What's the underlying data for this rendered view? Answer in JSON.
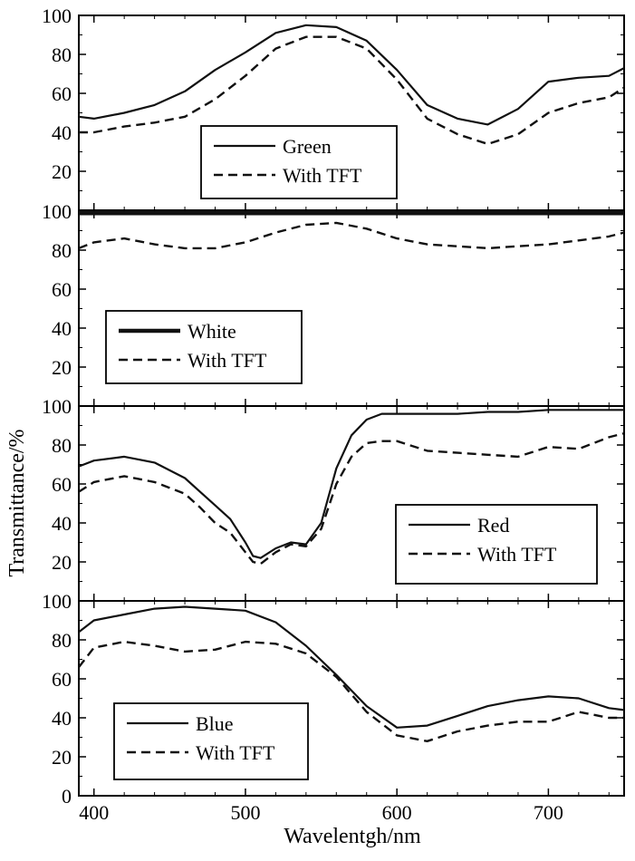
{
  "chart_data": {
    "type": "line",
    "xlabel": "Wavelentgh/nm",
    "ylabel": "Transmittance/%",
    "xlim": [
      390,
      750
    ],
    "ylim": [
      0,
      100
    ],
    "xticks": [
      "400",
      "500",
      "600",
      "700"
    ],
    "yticks": [
      "0",
      "20",
      "40",
      "60",
      "80",
      "100"
    ],
    "grid": false,
    "panels": [
      {
        "id": "green",
        "legend_position": "bottom-center",
        "series": [
          {
            "name": "Green",
            "style": "solid",
            "x": [
              390,
              400,
              420,
              440,
              460,
              480,
              500,
              520,
              540,
              560,
              580,
              600,
              620,
              640,
              660,
              680,
              700,
              720,
              740,
              750
            ],
            "y": [
              48,
              47,
              50,
              54,
              61,
              72,
              81,
              91,
              95,
              94,
              87,
              72,
              54,
              47,
              44,
              52,
              66,
              68,
              69,
              73
            ]
          },
          {
            "name": "With TFT",
            "style": "dashed",
            "x": [
              390,
              400,
              420,
              440,
              460,
              480,
              500,
              520,
              540,
              560,
              580,
              600,
              620,
              640,
              660,
              680,
              700,
              720,
              740,
              750
            ],
            "y": [
              40,
              40,
              43,
              45,
              48,
              57,
              69,
              83,
              89,
              89,
              83,
              67,
              47,
              39,
              34,
              39,
              50,
              55,
              58,
              63
            ]
          }
        ]
      },
      {
        "id": "white",
        "legend_position": "bottom-left",
        "series": [
          {
            "name": "White",
            "style": "thick-solid",
            "x": [
              390,
              750
            ],
            "y": [
              99,
              99
            ]
          },
          {
            "name": "With TFT",
            "style": "dashed",
            "x": [
              390,
              400,
              420,
              440,
              460,
              480,
              500,
              520,
              540,
              560,
              580,
              600,
              620,
              640,
              660,
              680,
              700,
              720,
              740,
              750
            ],
            "y": [
              81,
              84,
              86,
              83,
              81,
              81,
              84,
              89,
              93,
              94,
              91,
              86,
              83,
              82,
              81,
              82,
              83,
              85,
              87,
              89
            ]
          }
        ]
      },
      {
        "id": "red",
        "legend_position": "bottom-right",
        "series": [
          {
            "name": "Red",
            "style": "solid",
            "x": [
              390,
              400,
              420,
              440,
              460,
              470,
              480,
              490,
              500,
              505,
              510,
              520,
              530,
              540,
              550,
              560,
              570,
              580,
              590,
              600,
              620,
              640,
              660,
              680,
              700,
              720,
              740,
              750
            ],
            "y": [
              69,
              72,
              74,
              71,
              63,
              56,
              49,
              42,
              30,
              23,
              22,
              27,
              30,
              29,
              40,
              68,
              85,
              93,
              96,
              96,
              96,
              96,
              97,
              97,
              98,
              98,
              98,
              98
            ]
          },
          {
            "name": "With TFT",
            "style": "dashed",
            "x": [
              390,
              400,
              420,
              440,
              460,
              470,
              480,
              490,
              500,
              505,
              510,
              520,
              530,
              540,
              550,
              560,
              570,
              580,
              590,
              600,
              620,
              640,
              660,
              680,
              700,
              720,
              740,
              750
            ],
            "y": [
              56,
              61,
              64,
              61,
              55,
              48,
              40,
              35,
              25,
              20,
              19,
              25,
              29,
              28,
              37,
              60,
              74,
              81,
              82,
              82,
              77,
              76,
              75,
              74,
              79,
              78,
              84,
              86
            ]
          }
        ]
      },
      {
        "id": "blue",
        "legend_position": "bottom-left",
        "series": [
          {
            "name": "Blue",
            "style": "solid",
            "x": [
              390,
              400,
              420,
              440,
              460,
              480,
              500,
              520,
              540,
              560,
              580,
              600,
              620,
              640,
              660,
              680,
              700,
              720,
              740,
              750
            ],
            "y": [
              84,
              90,
              93,
              96,
              97,
              96,
              95,
              89,
              77,
              62,
              46,
              35,
              36,
              41,
              46,
              49,
              51,
              50,
              45,
              44
            ]
          },
          {
            "name": "With TFT",
            "style": "dashed",
            "x": [
              390,
              400,
              420,
              440,
              460,
              480,
              500,
              520,
              540,
              560,
              580,
              600,
              620,
              640,
              660,
              680,
              700,
              720,
              740,
              750
            ],
            "y": [
              66,
              76,
              79,
              77,
              74,
              75,
              79,
              78,
              73,
              61,
              43,
              31,
              28,
              33,
              36,
              38,
              38,
              43,
              40,
              40
            ]
          }
        ]
      }
    ]
  }
}
